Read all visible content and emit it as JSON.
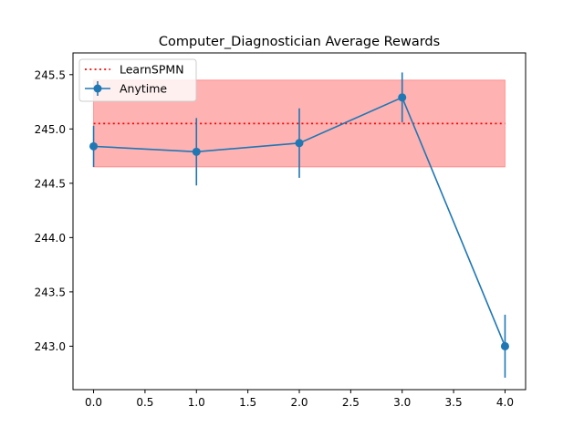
{
  "chart_data": {
    "type": "line",
    "title": "Computer_Diagnostician Average Rewards",
    "xlabel": "",
    "ylabel": "",
    "xlim": [
      -0.2,
      4.2
    ],
    "ylim": [
      242.6,
      245.7
    ],
    "xticks": [
      0.0,
      0.5,
      1.0,
      1.5,
      2.0,
      2.5,
      3.0,
      3.5,
      4.0
    ],
    "xtick_labels": [
      "0.0",
      "0.5",
      "1.0",
      "1.5",
      "2.0",
      "2.5",
      "3.0",
      "3.5",
      "4.0"
    ],
    "yticks": [
      243.0,
      243.5,
      244.0,
      244.5,
      245.0,
      245.5
    ],
    "ytick_labels": [
      "243.0",
      "243.5",
      "244.0",
      "244.5",
      "245.0",
      "245.5"
    ],
    "grid": false,
    "legend_position": "upper-left",
    "series": [
      {
        "name": "LearnSPMN",
        "style": "dotted",
        "color": "#ff0000",
        "x": [
          0,
          4
        ],
        "value": 245.05,
        "band": [
          244.65,
          245.45
        ],
        "band_color": "#ff0000"
      },
      {
        "name": "Anytime",
        "style": "line-errorbar",
        "color": "#1f77b4",
        "x": [
          0,
          1,
          2,
          3,
          4
        ],
        "y": [
          244.84,
          244.79,
          244.87,
          245.29,
          243.0
        ],
        "yerr": [
          0.19,
          0.31,
          0.32,
          0.23,
          0.29
        ]
      }
    ]
  }
}
